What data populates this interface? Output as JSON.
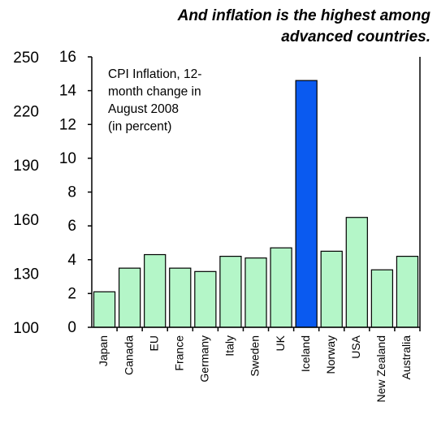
{
  "chart_data": {
    "type": "bar",
    "title": [
      "And inflation is the highest among",
      "advanced countries."
    ],
    "annotation": [
      "CPI Inflation, 12-",
      "month change in",
      "August 2008",
      "(in percent)"
    ],
    "categories": [
      "Japan",
      "Canada",
      "EU",
      "France",
      "Germany",
      "Italy",
      "Sweden",
      "UK",
      "Iceland",
      "Norway",
      "USA",
      "New Zealand",
      "Australia"
    ],
    "values": [
      2.1,
      3.5,
      4.3,
      3.5,
      3.3,
      4.2,
      4.1,
      4.7,
      14.6,
      4.5,
      6.5,
      3.4,
      4.2
    ],
    "colors": [
      "#b4f6c8",
      "#b4f6c8",
      "#b4f6c8",
      "#b4f6c8",
      "#b4f6c8",
      "#b4f6c8",
      "#b4f6c8",
      "#b4f6c8",
      "#0a5af0",
      "#b4f6c8",
      "#b4f6c8",
      "#b4f6c8",
      "#b4f6c8"
    ],
    "ylim": [
      0,
      16
    ],
    "yticks": [
      0,
      2,
      4,
      6,
      8,
      10,
      12,
      14,
      16
    ],
    "y2lim": [
      100,
      250
    ],
    "y2ticks": [
      100,
      130,
      160,
      190,
      220,
      250
    ]
  }
}
